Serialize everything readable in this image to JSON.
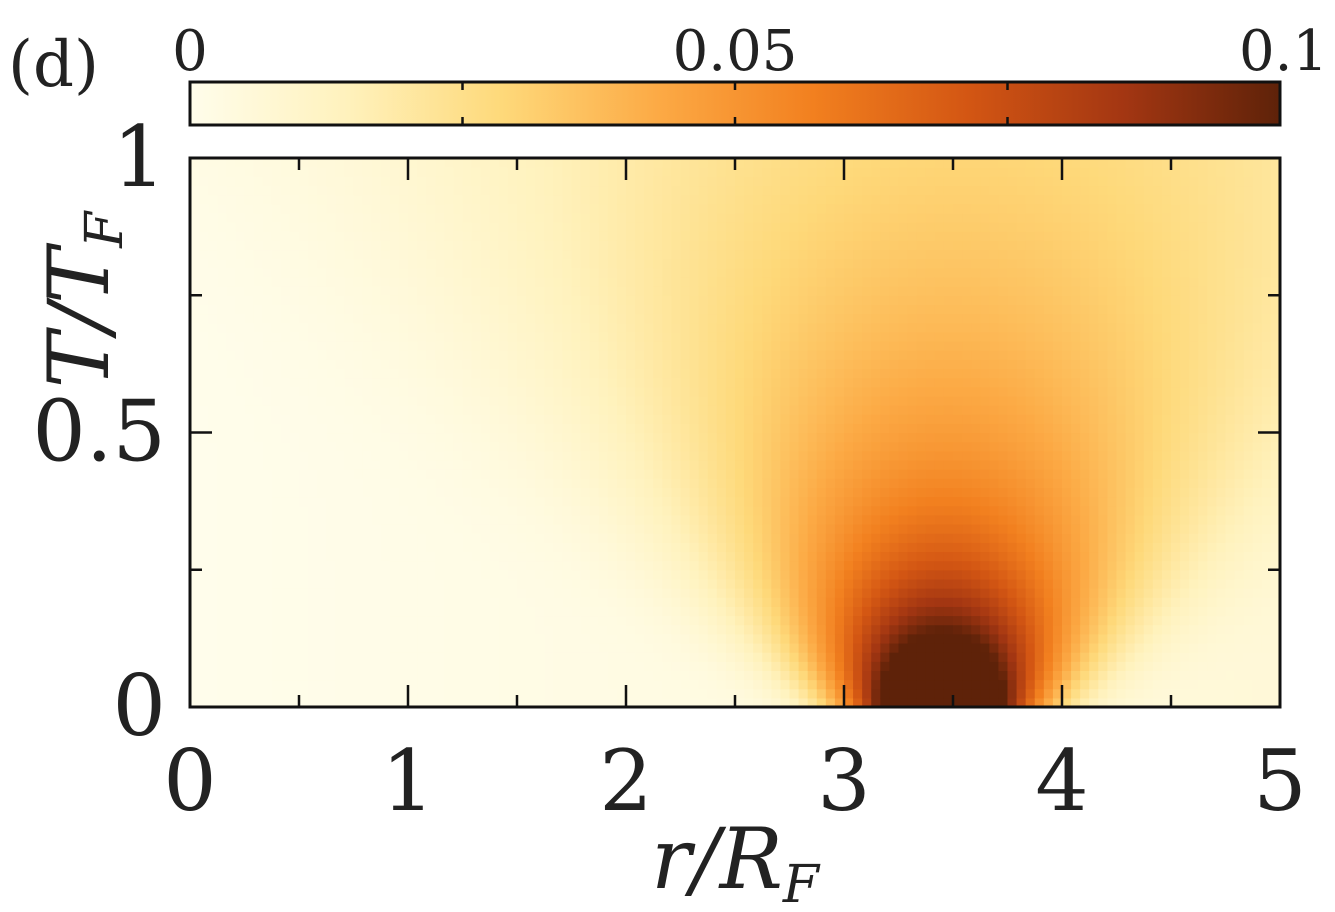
{
  "chart_data": {
    "type": "heatmap",
    "panel_label": "(d)",
    "xlabel": {
      "main": "r",
      "slash": "/",
      "sym": "R",
      "sub": "F"
    },
    "ylabel": {
      "main": "T",
      "slash": "/",
      "sym": "T",
      "sub": "F"
    },
    "x_range": [
      0,
      5
    ],
    "y_range": [
      0,
      1
    ],
    "x_ticks": [
      "0",
      "1",
      "2",
      "3",
      "4",
      "5"
    ],
    "y_ticks": [
      "0",
      "0.5",
      "1"
    ],
    "colorbar": {
      "range": [
        0,
        0.1
      ],
      "tick_labels": [
        "0",
        "0.05",
        "0.1"
      ],
      "colors": [
        "#fffdeb",
        "#fff2bd",
        "#fed97a",
        "#fcaa45",
        "#f2801f",
        "#d35613",
        "#a33612",
        "#5e2209"
      ]
    },
    "peak": {
      "x": 3.45,
      "y": 0.0,
      "value": 0.1
    },
    "grid": false
  }
}
